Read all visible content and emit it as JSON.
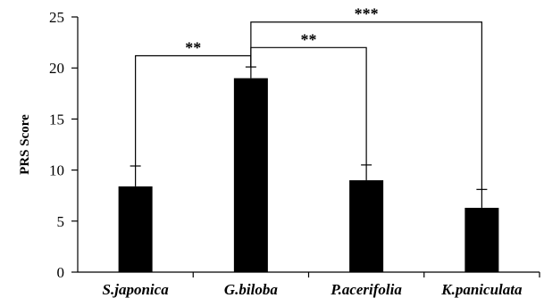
{
  "chart_data": {
    "type": "bar",
    "title": "",
    "xlabel": "",
    "ylabel": "PRS Score",
    "categories": [
      "S.japonica",
      "G.biloba",
      "P.acerifolia",
      "K.paniculata"
    ],
    "values": [
      8.4,
      19.0,
      9.0,
      6.3
    ],
    "errors": [
      2.0,
      1.1,
      1.5,
      1.8
    ],
    "ylim": [
      0,
      25
    ],
    "yticks": [
      0,
      5,
      10,
      15,
      20,
      25
    ],
    "bar_color": "#000000",
    "grid": false,
    "significance": [
      {
        "from": 1,
        "to": 0,
        "label": "**",
        "y": 21.2
      },
      {
        "from": 1,
        "to": 2,
        "label": "**",
        "y": 22.0
      },
      {
        "from": 1,
        "to": 3,
        "label": "***",
        "y": 24.5
      }
    ]
  }
}
